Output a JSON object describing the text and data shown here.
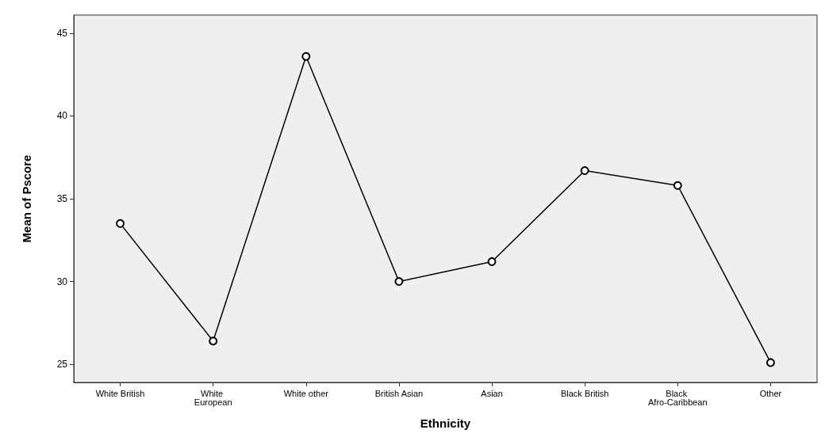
{
  "chart_data": {
    "type": "line",
    "xlabel": "Ethnicity",
    "ylabel": "Mean of Pscore",
    "categories": [
      "White British",
      "White European",
      "White other",
      "British Asian",
      "Asian",
      "Black British",
      "Black Afro-Caribbean",
      "Other"
    ],
    "values": [
      33.5,
      26.4,
      43.6,
      30.0,
      31.2,
      36.7,
      35.8,
      25.1
    ],
    "color": "#000000",
    "marker": "circle",
    "line_style": "solid",
    "ylim": [
      23.9,
      46.1
    ],
    "yticks": [
      25,
      30,
      35,
      40,
      45
    ],
    "grid": false
  }
}
